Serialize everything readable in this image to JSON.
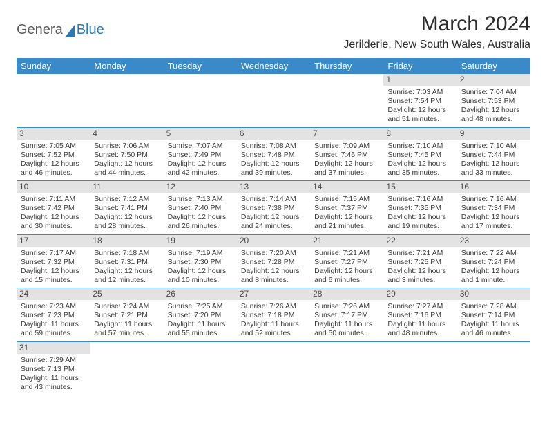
{
  "logo": {
    "part1": "Genera",
    "part2": "Blue"
  },
  "title": "March 2024",
  "location": "Jerilderie, New South Wales, Australia",
  "colors": {
    "header_bg": "#3a8ac9",
    "header_fg": "#ffffff",
    "daynum_bg": "#e3e3e3",
    "rule": "#3a8ac9",
    "logo_accent": "#2a7ab8"
  },
  "dow": [
    "Sunday",
    "Monday",
    "Tuesday",
    "Wednesday",
    "Thursday",
    "Friday",
    "Saturday"
  ],
  "weeks": [
    [
      null,
      null,
      null,
      null,
      null,
      {
        "n": "1",
        "rise": "Sunrise: 7:03 AM",
        "set": "Sunset: 7:54 PM",
        "d1": "Daylight: 12 hours",
        "d2": "and 51 minutes."
      },
      {
        "n": "2",
        "rise": "Sunrise: 7:04 AM",
        "set": "Sunset: 7:53 PM",
        "d1": "Daylight: 12 hours",
        "d2": "and 48 minutes."
      }
    ],
    [
      {
        "n": "3",
        "rise": "Sunrise: 7:05 AM",
        "set": "Sunset: 7:52 PM",
        "d1": "Daylight: 12 hours",
        "d2": "and 46 minutes."
      },
      {
        "n": "4",
        "rise": "Sunrise: 7:06 AM",
        "set": "Sunset: 7:50 PM",
        "d1": "Daylight: 12 hours",
        "d2": "and 44 minutes."
      },
      {
        "n": "5",
        "rise": "Sunrise: 7:07 AM",
        "set": "Sunset: 7:49 PM",
        "d1": "Daylight: 12 hours",
        "d2": "and 42 minutes."
      },
      {
        "n": "6",
        "rise": "Sunrise: 7:08 AM",
        "set": "Sunset: 7:48 PM",
        "d1": "Daylight: 12 hours",
        "d2": "and 39 minutes."
      },
      {
        "n": "7",
        "rise": "Sunrise: 7:09 AM",
        "set": "Sunset: 7:46 PM",
        "d1": "Daylight: 12 hours",
        "d2": "and 37 minutes."
      },
      {
        "n": "8",
        "rise": "Sunrise: 7:10 AM",
        "set": "Sunset: 7:45 PM",
        "d1": "Daylight: 12 hours",
        "d2": "and 35 minutes."
      },
      {
        "n": "9",
        "rise": "Sunrise: 7:10 AM",
        "set": "Sunset: 7:44 PM",
        "d1": "Daylight: 12 hours",
        "d2": "and 33 minutes."
      }
    ],
    [
      {
        "n": "10",
        "rise": "Sunrise: 7:11 AM",
        "set": "Sunset: 7:42 PM",
        "d1": "Daylight: 12 hours",
        "d2": "and 30 minutes."
      },
      {
        "n": "11",
        "rise": "Sunrise: 7:12 AM",
        "set": "Sunset: 7:41 PM",
        "d1": "Daylight: 12 hours",
        "d2": "and 28 minutes."
      },
      {
        "n": "12",
        "rise": "Sunrise: 7:13 AM",
        "set": "Sunset: 7:40 PM",
        "d1": "Daylight: 12 hours",
        "d2": "and 26 minutes."
      },
      {
        "n": "13",
        "rise": "Sunrise: 7:14 AM",
        "set": "Sunset: 7:38 PM",
        "d1": "Daylight: 12 hours",
        "d2": "and 24 minutes."
      },
      {
        "n": "14",
        "rise": "Sunrise: 7:15 AM",
        "set": "Sunset: 7:37 PM",
        "d1": "Daylight: 12 hours",
        "d2": "and 21 minutes."
      },
      {
        "n": "15",
        "rise": "Sunrise: 7:16 AM",
        "set": "Sunset: 7:35 PM",
        "d1": "Daylight: 12 hours",
        "d2": "and 19 minutes."
      },
      {
        "n": "16",
        "rise": "Sunrise: 7:16 AM",
        "set": "Sunset: 7:34 PM",
        "d1": "Daylight: 12 hours",
        "d2": "and 17 minutes."
      }
    ],
    [
      {
        "n": "17",
        "rise": "Sunrise: 7:17 AM",
        "set": "Sunset: 7:32 PM",
        "d1": "Daylight: 12 hours",
        "d2": "and 15 minutes."
      },
      {
        "n": "18",
        "rise": "Sunrise: 7:18 AM",
        "set": "Sunset: 7:31 PM",
        "d1": "Daylight: 12 hours",
        "d2": "and 12 minutes."
      },
      {
        "n": "19",
        "rise": "Sunrise: 7:19 AM",
        "set": "Sunset: 7:30 PM",
        "d1": "Daylight: 12 hours",
        "d2": "and 10 minutes."
      },
      {
        "n": "20",
        "rise": "Sunrise: 7:20 AM",
        "set": "Sunset: 7:28 PM",
        "d1": "Daylight: 12 hours",
        "d2": "and 8 minutes."
      },
      {
        "n": "21",
        "rise": "Sunrise: 7:21 AM",
        "set": "Sunset: 7:27 PM",
        "d1": "Daylight: 12 hours",
        "d2": "and 6 minutes."
      },
      {
        "n": "22",
        "rise": "Sunrise: 7:21 AM",
        "set": "Sunset: 7:25 PM",
        "d1": "Daylight: 12 hours",
        "d2": "and 3 minutes."
      },
      {
        "n": "23",
        "rise": "Sunrise: 7:22 AM",
        "set": "Sunset: 7:24 PM",
        "d1": "Daylight: 12 hours",
        "d2": "and 1 minute."
      }
    ],
    [
      {
        "n": "24",
        "rise": "Sunrise: 7:23 AM",
        "set": "Sunset: 7:23 PM",
        "d1": "Daylight: 11 hours",
        "d2": "and 59 minutes."
      },
      {
        "n": "25",
        "rise": "Sunrise: 7:24 AM",
        "set": "Sunset: 7:21 PM",
        "d1": "Daylight: 11 hours",
        "d2": "and 57 minutes."
      },
      {
        "n": "26",
        "rise": "Sunrise: 7:25 AM",
        "set": "Sunset: 7:20 PM",
        "d1": "Daylight: 11 hours",
        "d2": "and 55 minutes."
      },
      {
        "n": "27",
        "rise": "Sunrise: 7:26 AM",
        "set": "Sunset: 7:18 PM",
        "d1": "Daylight: 11 hours",
        "d2": "and 52 minutes."
      },
      {
        "n": "28",
        "rise": "Sunrise: 7:26 AM",
        "set": "Sunset: 7:17 PM",
        "d1": "Daylight: 11 hours",
        "d2": "and 50 minutes."
      },
      {
        "n": "29",
        "rise": "Sunrise: 7:27 AM",
        "set": "Sunset: 7:16 PM",
        "d1": "Daylight: 11 hours",
        "d2": "and 48 minutes."
      },
      {
        "n": "30",
        "rise": "Sunrise: 7:28 AM",
        "set": "Sunset: 7:14 PM",
        "d1": "Daylight: 11 hours",
        "d2": "and 46 minutes."
      }
    ],
    [
      {
        "n": "31",
        "rise": "Sunrise: 7:29 AM",
        "set": "Sunset: 7:13 PM",
        "d1": "Daylight: 11 hours",
        "d2": "and 43 minutes."
      },
      null,
      null,
      null,
      null,
      null,
      null
    ]
  ]
}
